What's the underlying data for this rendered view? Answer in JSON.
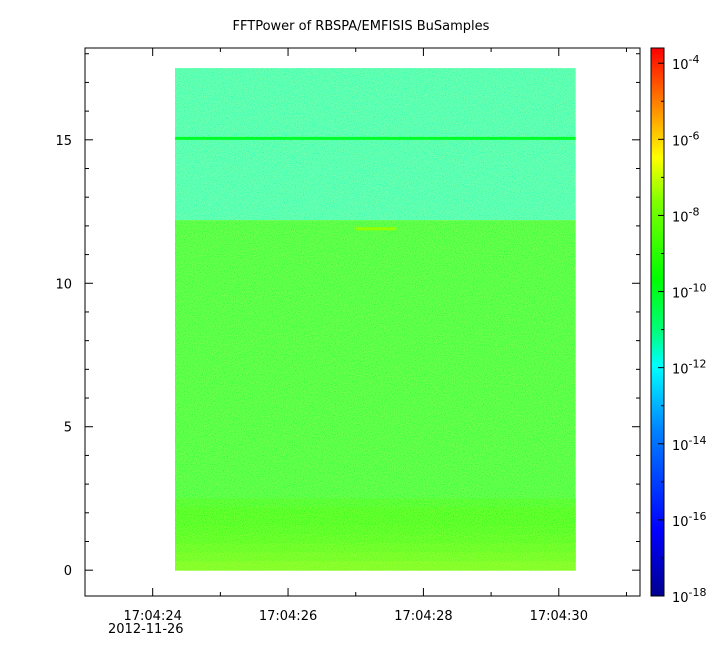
{
  "chart_data": {
    "type": "heatmap",
    "title": "FFTPower of RBSPA/EMFISIS  BuSamples",
    "xlabel": "",
    "ylabel": "",
    "x_ticks": [
      {
        "value": 24,
        "label": "17:04:24"
      },
      {
        "value": 26,
        "label": "17:04:26"
      },
      {
        "value": 28,
        "label": "17:04:28"
      },
      {
        "value": 30,
        "label": "17:04:30"
      }
    ],
    "x_date_label": "2012-11-26",
    "xlim": [
      23.0,
      31.2
    ],
    "x_minor_step": 1,
    "y_ticks": [
      0,
      5,
      10,
      15
    ],
    "ylim": [
      -0.9,
      18.2
    ],
    "y_minor_step": 1,
    "data_extent": {
      "x": [
        24.33,
        30.25
      ],
      "y": [
        0,
        17.5
      ]
    },
    "colorbar": {
      "scale": "log",
      "range_exponent": [
        -18,
        -3.6
      ],
      "tick_exponents": [
        -18,
        -16,
        -14,
        -12,
        -10,
        -8,
        -6,
        -4
      ],
      "tick_base": "10",
      "colors": [
        "#00008f",
        "#0000ff",
        "#0080ff",
        "#00ffff",
        "#00ff00",
        "#ffff00",
        "#ff8000",
        "#ff0000"
      ]
    },
    "features": [
      {
        "kind": "band",
        "description": "upper region",
        "y": [
          12.2,
          17.5
        ],
        "log10_power": -11.3
      },
      {
        "kind": "band",
        "description": "main region",
        "y": [
          0,
          12.2
        ],
        "log10_power": -10.2
      },
      {
        "kind": "line",
        "description": "horizontal line",
        "y": 15.05,
        "log10_power": -10.0
      },
      {
        "kind": "line",
        "description": "short yellow segment",
        "y": 11.9,
        "x": [
          27.0,
          27.6
        ],
        "log10_power": -7.8
      },
      {
        "kind": "low-frequency enhancement",
        "y": [
          0,
          2.5
        ],
        "log10_power": -8.3
      }
    ]
  }
}
